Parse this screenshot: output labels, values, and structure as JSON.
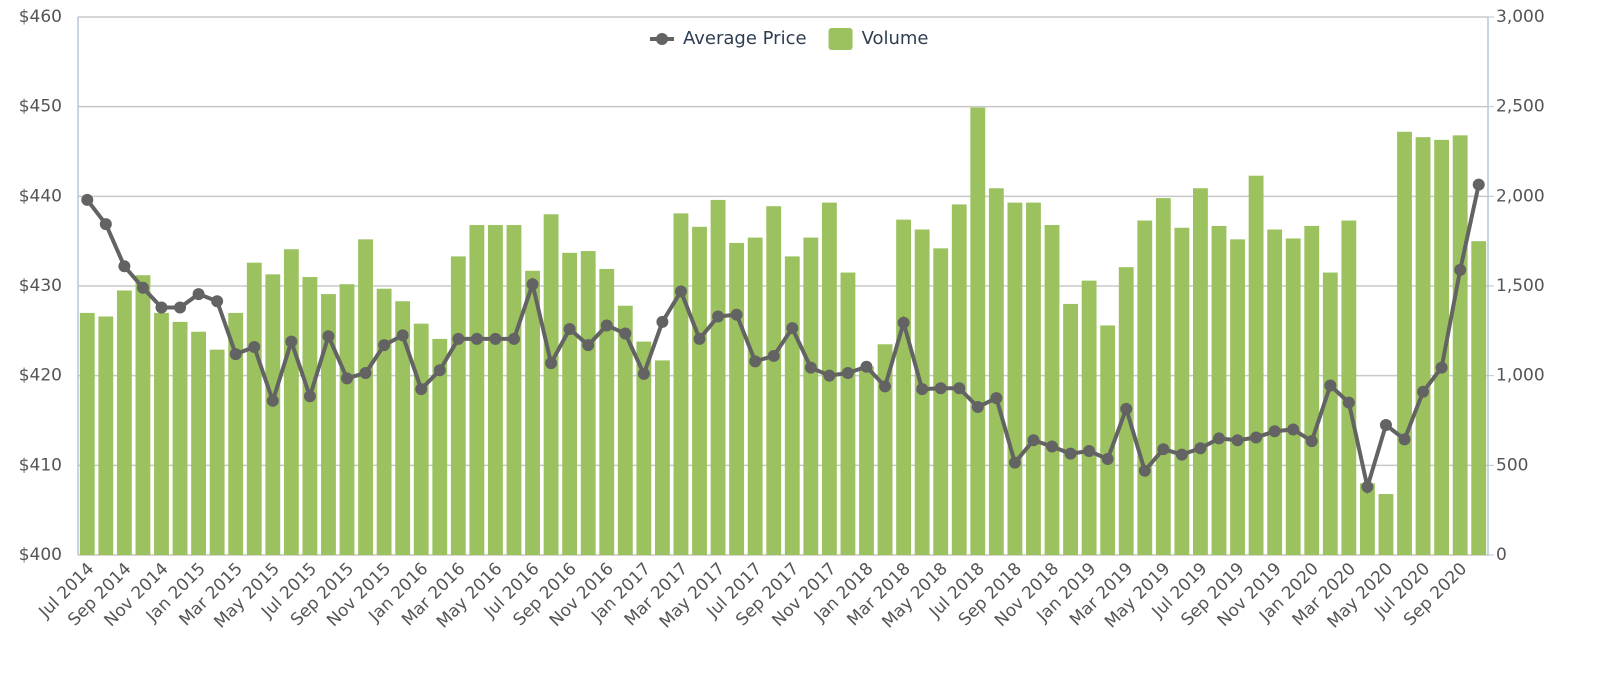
{
  "chart_data": {
    "type": "combo",
    "categories": [
      "Jul 2014",
      null,
      "Sep 2014",
      null,
      "Nov 2014",
      null,
      "Jan 2015",
      null,
      "Mar 2015",
      null,
      "May 2015",
      null,
      "Jul 2015",
      null,
      "Sep 2015",
      null,
      "Nov 2015",
      null,
      "Jan 2016",
      null,
      "Mar 2016",
      null,
      "May 2016",
      null,
      "Jul 2016",
      null,
      "Sep 2016",
      null,
      "Nov 2016",
      null,
      "Jan 2017",
      null,
      "Mar 2017",
      null,
      "May 2017",
      null,
      "Jul 2017",
      null,
      "Sep 2017",
      null,
      "Nov 2017",
      null,
      "Jan 2018",
      null,
      "Mar 2018",
      null,
      "May 2018",
      null,
      "Jul 2018",
      null,
      "Sep 2018",
      null,
      "Nov 2018",
      null,
      "Jan 2019",
      null,
      "Mar 2019",
      null,
      "May 2019",
      null,
      "Jul 2019",
      null,
      "Sep 2019",
      null,
      "Nov 2019",
      null,
      "Jan 2020",
      null,
      "Mar 2020",
      null,
      "May 2020",
      null,
      "Jul 2020",
      null,
      "Sep 2020",
      null
    ],
    "series": [
      {
        "name": "Volume",
        "type": "bar",
        "axis": "y2",
        "color": "#9bc25f",
        "values": [
          1350,
          1330,
          1475,
          1560,
          1350,
          1300,
          1245,
          1145,
          1350,
          1630,
          1565,
          1705,
          1550,
          1455,
          1510,
          1760,
          1485,
          1415,
          1290,
          1205,
          1665,
          1840,
          1840,
          1840,
          1585,
          1900,
          1685,
          1695,
          1595,
          1390,
          1190,
          1085,
          1905,
          1830,
          1980,
          1740,
          1770,
          1945,
          1665,
          1770,
          1965,
          1575,
          1050,
          1175,
          1870,
          1815,
          1710,
          1955,
          2495,
          2045,
          1965,
          1965,
          1840,
          1400,
          1530,
          1280,
          1605,
          1865,
          1990,
          1825,
          2045,
          1835,
          1760,
          2115,
          1815,
          1765,
          1835,
          1575,
          1865,
          400,
          340,
          2360,
          2330,
          2315,
          2340,
          1750
        ]
      },
      {
        "name": "Average Price",
        "type": "line",
        "color": "#636363",
        "values": [
          439.6,
          436.9,
          432.2,
          429.8,
          427.6,
          427.6,
          429.1,
          428.3,
          422.4,
          423.2,
          417.2,
          423.8,
          417.7,
          424.4,
          419.7,
          420.3,
          423.4,
          424.5,
          418.5,
          420.6,
          424.1,
          424.1,
          424.1,
          424.1,
          430.2,
          421.4,
          425.2,
          423.4,
          425.6,
          424.7,
          420.2,
          426,
          429.4,
          424.1,
          426.6,
          426.8,
          421.6,
          422.2,
          425.3,
          420.9,
          420,
          420.3,
          421,
          418.8,
          425.9,
          418.5,
          418.6,
          418.6,
          416.5,
          417.5,
          410.3,
          412.8,
          412.1,
          411.3,
          411.6,
          410.7,
          416.3,
          409.4,
          411.8,
          411.2,
          411.9,
          413,
          412.8,
          413.1,
          413.8,
          414,
          412.7,
          418.9,
          417,
          407.6,
          414.5,
          412.9,
          418.2,
          420.9,
          431.8,
          441.3
        ]
      }
    ],
    "ylim": [
      400,
      460
    ],
    "yticks": [
      {
        "value": 400,
        "label": "$400"
      },
      {
        "value": 410,
        "label": "$410"
      },
      {
        "value": 420,
        "label": "$420"
      },
      {
        "value": 430,
        "label": "$430"
      },
      {
        "value": 440,
        "label": "$440"
      },
      {
        "value": 450,
        "label": "$450"
      },
      {
        "value": 460,
        "label": "$460"
      }
    ],
    "y2lim": [
      0,
      3000
    ],
    "y2ticks": [
      0,
      {
        "value": 500,
        "label": "500"
      },
      {
        "value": 1000,
        "label": "1,000"
      },
      {
        "value": 1500,
        "label": "1,500"
      },
      {
        "value": 2000,
        "label": "2,000"
      },
      {
        "value": 2500,
        "label": "2,500"
      },
      {
        "value": 3000,
        "label": "3,000"
      }
    ],
    "grid": true,
    "legend": "top"
  }
}
